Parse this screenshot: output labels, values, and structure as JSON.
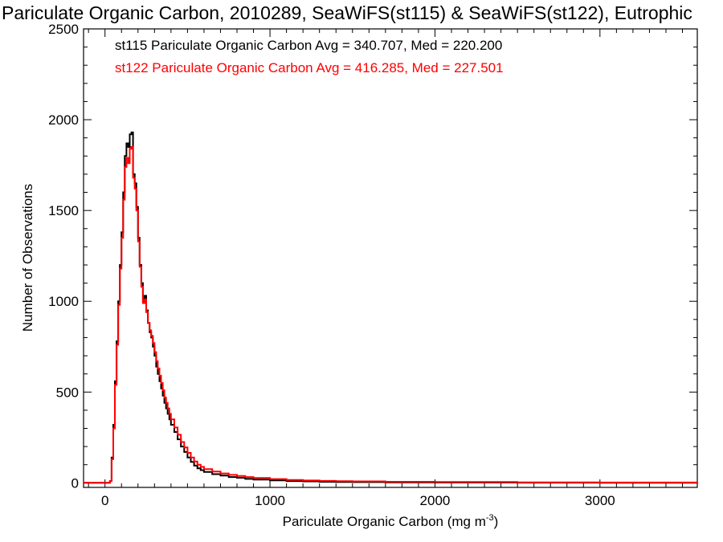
{
  "chart_data": {
    "type": "line",
    "title": "Pariculate Organic Carbon, 2010289, SeaWiFS(st115) & SeaWiFS(st122), Eutrophic",
    "xlabel": "Pariculate Organic Carbon (mg m",
    "xlabel_superscript": "-3",
    "xlabel_close": ")",
    "ylabel": "Number of Observations",
    "xlim": [
      -130,
      3590
    ],
    "ylim": [
      -25,
      2500
    ],
    "x_ticks": [
      0,
      1000,
      2000,
      3000
    ],
    "x_tick_labels": [
      "0",
      "1000",
      "2000",
      "3000"
    ],
    "y_ticks": [
      0,
      500,
      1000,
      1500,
      2000,
      2500
    ],
    "y_tick_labels": [
      "0",
      "500",
      "1000",
      "1500",
      "2000",
      "2500"
    ],
    "grid": false,
    "legend_position": "top-left",
    "series": [
      {
        "name": "st115",
        "stats_label": "st115 Pariculate Organic Carbon Avg = 340.707, Med = 220.200",
        "color": "#000000",
        "x": [
          -130,
          30,
          40,
          50,
          60,
          70,
          80,
          90,
          100,
          110,
          120,
          130,
          140,
          150,
          160,
          170,
          180,
          190,
          200,
          210,
          220,
          230,
          240,
          250,
          260,
          270,
          280,
          290,
          300,
          310,
          320,
          330,
          340,
          350,
          360,
          370,
          380,
          390,
          400,
          420,
          440,
          460,
          480,
          500,
          520,
          540,
          560,
          580,
          600,
          650,
          700,
          750,
          800,
          850,
          900,
          1000,
          1100,
          1200,
          1300,
          1400,
          1500,
          1700,
          2000,
          2500,
          3000,
          3590
        ],
        "values": [
          0,
          10,
          140,
          320,
          560,
          780,
          1000,
          1200,
          1380,
          1600,
          1800,
          1870,
          1850,
          1920,
          1930,
          1700,
          1650,
          1520,
          1350,
          1200,
          1100,
          1000,
          1030,
          950,
          880,
          830,
          800,
          750,
          700,
          640,
          600,
          560,
          520,
          480,
          440,
          410,
          380,
          350,
          320,
          280,
          240,
          200,
          170,
          140,
          115,
          95,
          80,
          70,
          60,
          48,
          40,
          32,
          28,
          22,
          18,
          14,
          10,
          8,
          6,
          5,
          4,
          3,
          2,
          1,
          0,
          0
        ]
      },
      {
        "name": "st122",
        "stats_label": "st122 Pariculate Organic Carbon Avg = 416.285, Med = 227.501",
        "color": "#ff0000",
        "x": [
          -130,
          30,
          40,
          50,
          60,
          70,
          80,
          90,
          100,
          110,
          120,
          130,
          140,
          150,
          160,
          170,
          180,
          190,
          200,
          210,
          220,
          230,
          240,
          250,
          260,
          270,
          280,
          290,
          300,
          310,
          320,
          330,
          340,
          350,
          360,
          370,
          380,
          390,
          400,
          420,
          440,
          460,
          480,
          500,
          520,
          540,
          560,
          580,
          600,
          650,
          700,
          750,
          800,
          850,
          900,
          1000,
          1100,
          1200,
          1300,
          1400,
          1500,
          1700,
          2000,
          2500,
          3000,
          3590
        ],
        "values": [
          0,
          10,
          130,
          300,
          540,
          760,
          980,
          1180,
          1350,
          1560,
          1740,
          1790,
          1760,
          1840,
          1850,
          1680,
          1620,
          1500,
          1330,
          1190,
          1080,
          990,
          1010,
          940,
          880,
          840,
          810,
          770,
          720,
          670,
          630,
          590,
          550,
          510,
          470,
          440,
          410,
          380,
          350,
          305,
          265,
          225,
          195,
          165,
          140,
          118,
          100,
          88,
          76,
          62,
          52,
          44,
          38,
          32,
          27,
          21,
          16,
          13,
          11,
          9,
          8,
          6,
          5,
          3,
          2,
          1
        ]
      }
    ]
  }
}
